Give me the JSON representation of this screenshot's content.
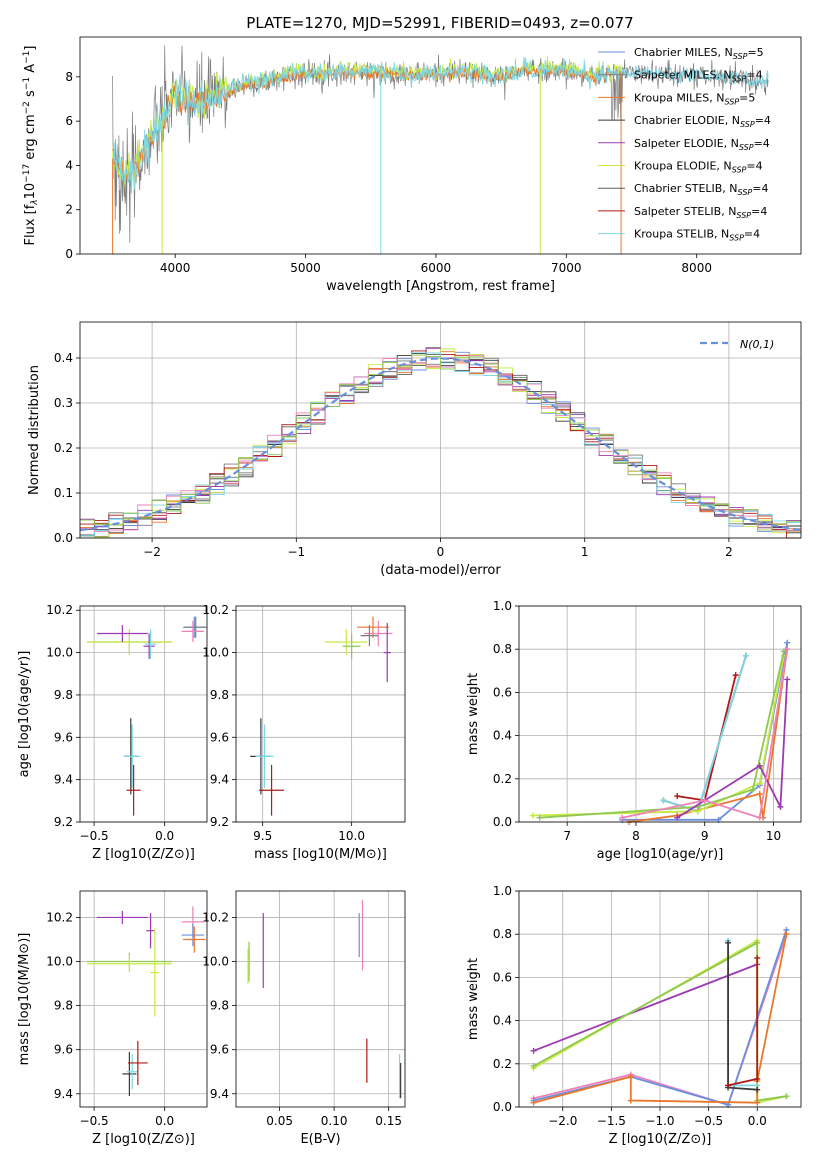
{
  "title": "PLATE=1270, MJD=52991, FIBERID=0493, z=0.077",
  "colors": {
    "c1": "#6a8fdc",
    "c2": "#7c7c7c",
    "c3": "#e9782b",
    "c4": "#3a3a3a",
    "c5": "#9c39b4",
    "c6": "#c6ea43",
    "c7": "#5d5d5d",
    "c8": "#b21818",
    "c9": "#7dd8e6",
    "c10": "#ee82b8",
    "c11": "#8ec850",
    "c12": "#8a5a2a",
    "c13": "#d88f3d",
    "c14": "#9bb04a",
    "c15": "#3a7fbd"
  },
  "legend_spectrum": [
    {
      "text": "Chabrier MILES, N",
      "sub": "SSP",
      "suffix": "=5",
      "color": "c1"
    },
    {
      "text": "Salpeter MILES, N",
      "sub": "SSP",
      "suffix": "=4",
      "color": "c2"
    },
    {
      "text": "Kroupa MILES, N",
      "sub": "SSP",
      "suffix": "=5",
      "color": "c3"
    },
    {
      "text": "Chabrier ELODIE, N",
      "sub": "SSP",
      "suffix": "=4",
      "color": "c4"
    },
    {
      "text": "Salpeter ELODIE, N",
      "sub": "SSP",
      "suffix": "=4",
      "color": "c5"
    },
    {
      "text": "Kroupa ELODIE, N",
      "sub": "SSP",
      "suffix": "=4",
      "color": "c6"
    },
    {
      "text": "Chabrier STELIB, N",
      "sub": "SSP",
      "suffix": "=4",
      "color": "c7"
    },
    {
      "text": "Salpeter STELIB, N",
      "sub": "SSP",
      "suffix": "=4",
      "color": "c8"
    },
    {
      "text": "Kroupa STELIB, N",
      "sub": "SSP",
      "suffix": "=4",
      "color": "c9"
    }
  ],
  "chart_data": [
    {
      "id": "spectrum",
      "type": "line",
      "xlabel": "wavelength [Angstrom, rest frame]",
      "ylabel": "Flux [f_λ 10^-17 erg cm^-2 s^-1 A^-1]",
      "xlim": [
        3270,
        8800
      ],
      "ylim": [
        0,
        9.8
      ],
      "xticks": [
        4000,
        5000,
        6000,
        7000,
        8000
      ],
      "yticks": [
        0,
        2,
        4,
        6,
        8
      ],
      "grid": false,
      "legend": "right",
      "continuum": [
        [
          3520,
          4.3
        ],
        [
          3650,
          3.4
        ],
        [
          3800,
          5.0
        ],
        [
          3900,
          6.0
        ],
        [
          4000,
          7.3
        ],
        [
          4100,
          6.8
        ],
        [
          4300,
          7.0
        ],
        [
          4500,
          7.6
        ],
        [
          4700,
          7.8
        ],
        [
          4900,
          8.1
        ],
        [
          5200,
          8.2
        ],
        [
          5500,
          8.2
        ],
        [
          5800,
          8.1
        ],
        [
          6200,
          8.2
        ],
        [
          6500,
          8.0
        ],
        [
          6700,
          8.3
        ],
        [
          7000,
          8.3
        ],
        [
          7200,
          8.0
        ],
        [
          7400,
          8.2
        ],
        [
          7600,
          8.2
        ],
        [
          7900,
          8.1
        ],
        [
          8200,
          8.0
        ],
        [
          8500,
          7.8
        ]
      ],
      "dips": [
        {
          "x": 5577,
          "y": 0
        },
        {
          "x": 6800,
          "y": 0
        },
        {
          "x": 3900,
          "y": 0
        }
      ],
      "observed_noise_region": [
        3520,
        4400
      ]
    },
    {
      "id": "residual_hist",
      "type": "bar",
      "xlabel": "(data-model)/error",
      "ylabel": "Normed distribution",
      "xlim": [
        -2.5,
        2.5
      ],
      "ylim": [
        0,
        0.48
      ],
      "xticks": [
        -2,
        -1,
        0,
        1,
        2
      ],
      "xtick_labels": [
        "−2",
        "−1",
        "0",
        "1",
        "2"
      ],
      "yticks": [
        0.0,
        0.1,
        0.2,
        0.3,
        0.4
      ],
      "ytick_labels": [
        "0.0",
        "0.1",
        "0.2",
        "0.3",
        "0.4"
      ],
      "grid": true,
      "legend": "upper right",
      "reference": {
        "name": "N(0,1)",
        "mean": 0,
        "sigma": 1,
        "color": "c1"
      },
      "bin_width": 0.1
    },
    {
      "id": "age_vs_Z",
      "type": "scatter",
      "xlabel": "Z [log10(Z/Z⊙)]",
      "ylabel": "age [log10(age/yr)]",
      "xlim": [
        -0.6,
        0.3
      ],
      "ylim": [
        9.2,
        10.22
      ],
      "xticks": [
        -0.5,
        0.0
      ],
      "xtick_labels": [
        "−0.5",
        "0.0"
      ],
      "yticks": [
        9.2,
        9.4,
        9.6,
        9.8,
        10.0,
        10.2
      ],
      "ytick_labels": [
        "9.2",
        "9.4",
        "9.6",
        "9.8",
        "10.0",
        "10.2"
      ],
      "grid": true,
      "points": [
        {
          "x": 0.21,
          "y": 10.12,
          "xerr": 0.08,
          "yerr": 0.05,
          "color": "c1"
        },
        {
          "x": 0.22,
          "y": 10.12,
          "xerr": 0.08,
          "yerr": 0.05,
          "color": "c2"
        },
        {
          "x": 0.2,
          "y": 10.1,
          "xerr": 0.08,
          "yerr": 0.05,
          "color": "c10"
        },
        {
          "x": -0.25,
          "y": 10.05,
          "xerr": 0.3,
          "yerr": 0.06,
          "color": "c11"
        },
        {
          "x": -0.25,
          "y": 10.05,
          "xerr": 0.3,
          "yerr": 0.06,
          "color": "c6"
        },
        {
          "x": -0.3,
          "y": 10.09,
          "xerr": 0.18,
          "yerr": 0.04,
          "color": "c5"
        },
        {
          "x": -0.11,
          "y": 10.03,
          "xerr": 0.04,
          "yerr": 0.06,
          "color": "c5"
        },
        {
          "x": -0.1,
          "y": 10.04,
          "xerr": 0.04,
          "yerr": 0.07,
          "color": "c9"
        },
        {
          "x": -0.24,
          "y": 9.51,
          "xerr": 0.05,
          "yerr": 0.18,
          "color": "c4"
        },
        {
          "x": -0.23,
          "y": 9.51,
          "xerr": 0.06,
          "yerr": 0.15,
          "color": "c9"
        },
        {
          "x": -0.22,
          "y": 9.35,
          "xerr": 0.05,
          "yerr": 0.12,
          "color": "c8"
        }
      ]
    },
    {
      "id": "age_vs_mass",
      "type": "scatter",
      "xlabel": "mass [log10(M/M⊙)]",
      "ylabel": "",
      "xlim": [
        9.35,
        10.3
      ],
      "ylim": [
        9.2,
        10.22
      ],
      "xticks": [
        9.5,
        10.0
      ],
      "xtick_labels": [
        "9.5",
        "10.0"
      ],
      "yticks": [
        9.2,
        9.4,
        9.6,
        9.8,
        10.0,
        10.2
      ],
      "ytick_labels": [
        "9.2",
        "9.4",
        "9.6",
        "9.8",
        "10.0",
        "10.2"
      ],
      "grid": true,
      "points": [
        {
          "x": 10.12,
          "y": 10.12,
          "xerr": 0.09,
          "yerr": 0.05,
          "color": "c3"
        },
        {
          "x": 10.15,
          "y": 10.09,
          "xerr": 0.08,
          "yerr": 0.06,
          "color": "c10"
        },
        {
          "x": 10.1,
          "y": 10.08,
          "xerr": 0.05,
          "yerr": 0.05,
          "color": "c2"
        },
        {
          "x": 9.97,
          "y": 10.05,
          "xerr": 0.12,
          "yerr": 0.06,
          "color": "c6"
        },
        {
          "x": 10.0,
          "y": 10.03,
          "xerr": 0.05,
          "yerr": 0.06,
          "color": "c11"
        },
        {
          "x": 10.2,
          "y": 10.0,
          "xerr": 0.02,
          "yerr": 0.14,
          "color": "c5"
        },
        {
          "x": 9.49,
          "y": 9.51,
          "xerr": 0.06,
          "yerr": 0.18,
          "color": "c4"
        },
        {
          "x": 9.51,
          "y": 9.51,
          "xerr": 0.05,
          "yerr": 0.15,
          "color": "c9"
        },
        {
          "x": 9.55,
          "y": 9.35,
          "xerr": 0.07,
          "yerr": 0.12,
          "color": "c8"
        }
      ]
    },
    {
      "id": "mass_weight_vs_age",
      "type": "line",
      "xlabel": "age [log10(age/yr)]",
      "ylabel": "mass weight",
      "xlim": [
        6.3,
        10.4
      ],
      "ylim": [
        0,
        1.0
      ],
      "xticks": [
        7,
        8,
        9,
        10
      ],
      "xtick_labels": [
        "7",
        "8",
        "9",
        "10"
      ],
      "yticks": [
        0.0,
        0.2,
        0.4,
        0.6,
        0.8,
        1.0
      ],
      "ytick_labels": [
        "0.0",
        "0.2",
        "0.4",
        "0.6",
        "0.8",
        "1.0"
      ],
      "grid": true,
      "series": [
        {
          "color": "c8",
          "x": [
            8.6,
            9.0,
            9.45
          ],
          "y": [
            0.12,
            0.1,
            0.68
          ]
        },
        {
          "color": "c4",
          "x": [
            8.4,
            8.9,
            9.6
          ],
          "y": [
            0.1,
            0.05,
            0.77
          ]
        },
        {
          "color": "c9",
          "x": [
            8.4,
            8.9,
            9.6
          ],
          "y": [
            0.1,
            0.05,
            0.77
          ]
        },
        {
          "color": "c1",
          "x": [
            7.8,
            9.2,
            9.8,
            10.2
          ],
          "y": [
            0.01,
            0.01,
            0.17,
            0.83
          ]
        },
        {
          "color": "c3",
          "x": [
            7.9,
            8.6,
            9.8,
            9.85,
            10.2
          ],
          "y": [
            0.0,
            0.03,
            0.13,
            0.02,
            0.8
          ]
        },
        {
          "color": "c6",
          "x": [
            6.5,
            8.9,
            9.8,
            10.15
          ],
          "y": [
            0.03,
            0.05,
            0.18,
            0.77
          ]
        },
        {
          "color": "c11",
          "x": [
            6.6,
            8.9,
            9.7,
            10.15
          ],
          "y": [
            0.02,
            0.07,
            0.15,
            0.79
          ]
        },
        {
          "color": "c5",
          "x": [
            8.6,
            9.8,
            10.1,
            10.2
          ],
          "y": [
            0.02,
            0.26,
            0.07,
            0.66
          ]
        },
        {
          "color": "c10",
          "x": [
            7.8,
            9.0,
            9.8,
            10.2
          ],
          "y": [
            0.02,
            0.1,
            0.02,
            0.8
          ]
        }
      ]
    },
    {
      "id": "mass_vs_Z",
      "type": "scatter",
      "xlabel": "Z [log10(Z/Z⊙)]",
      "ylabel": "mass [log10(M/M⊙)]",
      "xlim": [
        -0.6,
        0.3
      ],
      "ylim": [
        9.34,
        10.32
      ],
      "xticks": [
        -0.5,
        0.0
      ],
      "xtick_labels": [
        "−0.5",
        "0.0"
      ],
      "yticks": [
        9.4,
        9.6,
        9.8,
        10.0,
        10.2
      ],
      "ytick_labels": [
        "9.4",
        "9.6",
        "9.8",
        "10.0",
        "10.2"
      ],
      "grid": true,
      "points": [
        {
          "x": 0.2,
          "y": 10.18,
          "xerr": 0.08,
          "yerr": 0.07,
          "color": "c10"
        },
        {
          "x": 0.2,
          "y": 10.12,
          "xerr": 0.08,
          "yerr": 0.05,
          "color": "c1"
        },
        {
          "x": 0.21,
          "y": 10.1,
          "xerr": 0.08,
          "yerr": 0.06,
          "color": "c3"
        },
        {
          "x": -0.3,
          "y": 10.2,
          "xerr": 0.18,
          "yerr": 0.03,
          "color": "c5"
        },
        {
          "x": -0.1,
          "y": 10.14,
          "xerr": 0.03,
          "yerr": 0.08,
          "color": "c5"
        },
        {
          "x": -0.25,
          "y": 10.0,
          "xerr": 0.3,
          "yerr": 0.04,
          "color": "c11"
        },
        {
          "x": -0.25,
          "y": 9.99,
          "xerr": 0.3,
          "yerr": 0.04,
          "color": "c6"
        },
        {
          "x": -0.07,
          "y": 9.95,
          "xerr": 0.03,
          "yerr": 0.2,
          "color": "c6"
        },
        {
          "x": -0.25,
          "y": 9.49,
          "xerr": 0.05,
          "yerr": 0.1,
          "color": "c4"
        },
        {
          "x": -0.23,
          "y": 9.5,
          "xerr": 0.04,
          "yerr": 0.08,
          "color": "c9"
        },
        {
          "x": -0.19,
          "y": 9.54,
          "xerr": 0.07,
          "yerr": 0.1,
          "color": "c8"
        }
      ]
    },
    {
      "id": "mass_vs_ebv",
      "type": "scatter",
      "xlabel": "E(B-V)",
      "ylabel": "",
      "xlim": [
        0.01,
        0.165
      ],
      "ylim": [
        9.34,
        10.32
      ],
      "xticks": [
        0.05,
        0.1,
        0.15
      ],
      "xtick_labels": [
        "0.05",
        "0.10",
        "0.15"
      ],
      "yticks": [
        9.4,
        9.6,
        9.8,
        10.0,
        10.2
      ],
      "ytick_labels": [
        "9.4",
        "9.6",
        "9.8",
        "10.0",
        "10.2"
      ],
      "grid": true,
      "points": [
        {
          "x": 0.022,
          "y": 10.0,
          "xerr": 0,
          "yerr": 0.09,
          "color": "c11"
        },
        {
          "x": 0.021,
          "y": 9.98,
          "xerr": 0,
          "yerr": 0.08,
          "color": "c6"
        },
        {
          "x": 0.035,
          "y": 10.05,
          "xerr": 0,
          "yerr": 0.17,
          "color": "c5"
        },
        {
          "x": 0.123,
          "y": 10.12,
          "xerr": 0,
          "yerr": 0.1,
          "color": "c1"
        },
        {
          "x": 0.126,
          "y": 10.12,
          "xerr": 0,
          "yerr": 0.16,
          "color": "c10"
        },
        {
          "x": 0.13,
          "y": 9.55,
          "xerr": 0,
          "yerr": 0.1,
          "color": "c8"
        },
        {
          "x": 0.16,
          "y": 9.48,
          "xerr": 0,
          "yerr": 0.1,
          "color": "c9"
        },
        {
          "x": 0.161,
          "y": 9.46,
          "xerr": 0,
          "yerr": 0.08,
          "color": "c4"
        }
      ]
    },
    {
      "id": "mass_weight_vs_Z",
      "type": "line",
      "xlabel": "Z [log10(Z/Z⊙)]",
      "ylabel": "mass weight",
      "xlim": [
        -2.45,
        0.45
      ],
      "ylim": [
        0,
        1.0
      ],
      "xticks": [
        -2.0,
        -1.5,
        -1.0,
        -0.5,
        0.0
      ],
      "xtick_labels": [
        "−2.0",
        "−1.5",
        "−1.0",
        "−0.5",
        "0.0"
      ],
      "yticks": [
        0.0,
        0.2,
        0.4,
        0.6,
        0.8,
        1.0
      ],
      "ytick_labels": [
        "0.0",
        "0.2",
        "0.4",
        "0.6",
        "0.8",
        "1.0"
      ],
      "grid": true,
      "series": [
        {
          "color": "c5",
          "x": [
            -2.3,
            0.0
          ],
          "y": [
            0.26,
            0.66
          ]
        },
        {
          "color": "c6",
          "x": [
            -2.3,
            0.0,
            0.0,
            0.3
          ],
          "y": [
            0.18,
            0.77,
            0.02,
            0.05
          ]
        },
        {
          "color": "c11",
          "x": [
            -2.3,
            0.0,
            0.0,
            0.3
          ],
          "y": [
            0.19,
            0.76,
            0.03,
            0.05
          ]
        },
        {
          "color": "c10",
          "x": [
            -2.3,
            -1.3,
            -0.3,
            0.3
          ],
          "y": [
            0.04,
            0.15,
            0.01,
            0.8
          ]
        },
        {
          "color": "c1",
          "x": [
            -2.3,
            -1.3,
            -0.3,
            0.3
          ],
          "y": [
            0.03,
            0.14,
            0.01,
            0.82
          ]
        },
        {
          "color": "c3",
          "x": [
            -2.3,
            -1.3,
            -1.3,
            0.0,
            0.0,
            0.3
          ],
          "y": [
            0.02,
            0.14,
            0.03,
            0.02,
            0.12,
            0.8
          ]
        },
        {
          "color": "c9",
          "x": [
            -0.3,
            -0.3,
            0.0
          ],
          "y": [
            0.77,
            0.1,
            0.1
          ]
        },
        {
          "color": "c4",
          "x": [
            -0.3,
            -0.3,
            0.0
          ],
          "y": [
            0.76,
            0.09,
            0.08
          ]
        },
        {
          "color": "c8",
          "x": [
            -0.3,
            0.0,
            0.0
          ],
          "y": [
            0.1,
            0.13,
            0.69
          ]
        }
      ]
    }
  ]
}
